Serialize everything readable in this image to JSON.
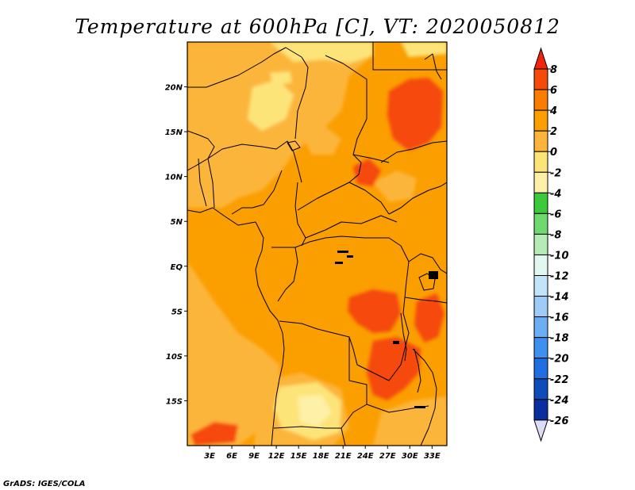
{
  "title": "Temperature at 600hPa [C], VT: 2020050812",
  "credit": "GrADS: IGES/COLA",
  "map": {
    "lon_range": [
      0,
      35
    ],
    "lat_range": [
      -20,
      25
    ],
    "lon_ticks": [
      {
        "value": 3,
        "label": "3E"
      },
      {
        "value": 6,
        "label": "6E"
      },
      {
        "value": 9,
        "label": "9E"
      },
      {
        "value": 12,
        "label": "12E"
      },
      {
        "value": 15,
        "label": "15E"
      },
      {
        "value": 18,
        "label": "18E"
      },
      {
        "value": 21,
        "label": "21E"
      },
      {
        "value": 24,
        "label": "24E"
      },
      {
        "value": 27,
        "label": "27E"
      },
      {
        "value": 30,
        "label": "30E"
      },
      {
        "value": 33,
        "label": "33E"
      }
    ],
    "lat_ticks": [
      {
        "value": 20,
        "label": "20N"
      },
      {
        "value": 15,
        "label": "15N"
      },
      {
        "value": 10,
        "label": "10N"
      },
      {
        "value": 5,
        "label": "5N"
      },
      {
        "value": 0,
        "label": "EQ"
      },
      {
        "value": -5,
        "label": "5S"
      },
      {
        "value": -10,
        "label": "10S"
      },
      {
        "value": -15,
        "label": "15S"
      }
    ]
  },
  "colorbar": {
    "labels": [
      "8",
      "6",
      "4",
      "2",
      "0",
      "-2",
      "-4",
      "-6",
      "-8",
      "-10",
      "-12",
      "-14",
      "-16",
      "-18",
      "-20",
      "-22",
      "-24",
      "-26"
    ],
    "colors": [
      "#f0250f",
      "#f54a0a",
      "#fa7d00",
      "#fb9e00",
      "#fcb53a",
      "#fde479",
      "#fef0a6",
      "#3cc93c",
      "#6fd96f",
      "#b5ecb5",
      "#e2f7f0",
      "#c2e4fb",
      "#9dcdf7",
      "#6caef4",
      "#3f90ee",
      "#1f6ee2",
      "#0e4cba",
      "#0a2da0",
      "#0a1780",
      "#dcdcf5"
    ]
  },
  "chart_data": {
    "type": "heatmap",
    "title": "Temperature at 600hPa [C], VT: 2020050812",
    "xlabel": "",
    "ylabel": "",
    "x_ticks": [
      "3E",
      "6E",
      "9E",
      "12E",
      "15E",
      "18E",
      "21E",
      "24E",
      "27E",
      "30E",
      "33E"
    ],
    "y_ticks": [
      "20N",
      "15N",
      "10N",
      "5N",
      "EQ",
      "5S",
      "10S",
      "15S"
    ],
    "colorbar_levels": [
      -26,
      -24,
      -22,
      -20,
      -18,
      -16,
      -14,
      -12,
      -10,
      -8,
      -6,
      -4,
      -2,
      0,
      2,
      4,
      6,
      8
    ],
    "value_range": [
      -2,
      8
    ]
  }
}
